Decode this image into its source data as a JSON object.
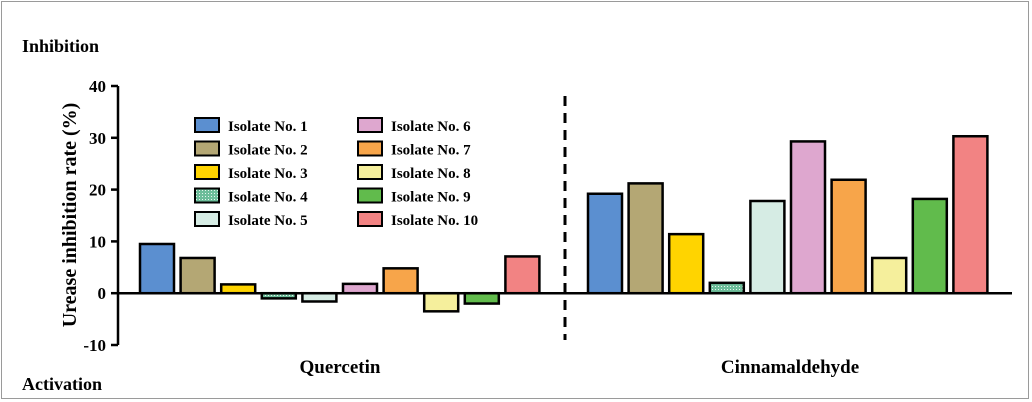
{
  "chart_data": {
    "type": "bar",
    "annotations": {
      "top": "Inhibition",
      "bottom": "Activation"
    },
    "ylabel": "Urease inhibition rate (%)",
    "ylim": [
      -10,
      40
    ],
    "yticks": [
      -10,
      0,
      10,
      20,
      30,
      40
    ],
    "groups": [
      "Quercetin",
      "Cinnamaldehyde"
    ],
    "series": [
      {
        "name": "Isolate No. 1",
        "color": "#5b8fd0",
        "pattern": "solid",
        "values": [
          9.5,
          19.2
        ]
      },
      {
        "name": "Isolate No. 2",
        "color": "#b4a774",
        "pattern": "solid",
        "values": [
          6.8,
          21.2
        ]
      },
      {
        "name": "Isolate No. 3",
        "color": "#ffd400",
        "pattern": "solid",
        "values": [
          1.7,
          11.4
        ]
      },
      {
        "name": "Isolate No. 4",
        "color": "#6dbd9a",
        "pattern": "dotted",
        "values": [
          -1.0,
          2.0
        ]
      },
      {
        "name": "Isolate No. 5",
        "color": "#d6ece4",
        "pattern": "solid",
        "values": [
          -1.6,
          17.8
        ]
      },
      {
        "name": "Isolate No. 6",
        "color": "#dea7cf",
        "pattern": "solid",
        "values": [
          1.8,
          29.3
        ]
      },
      {
        "name": "Isolate No. 7",
        "color": "#f7a54a",
        "pattern": "solid",
        "values": [
          4.8,
          21.9
        ]
      },
      {
        "name": "Isolate No. 8",
        "color": "#f5ef9c",
        "pattern": "solid",
        "values": [
          -3.5,
          6.8
        ]
      },
      {
        "name": "Isolate No. 9",
        "color": "#61bb4c",
        "pattern": "solid",
        "values": [
          -2.0,
          18.2
        ]
      },
      {
        "name": "Isolate No. 10",
        "color": "#f28383",
        "pattern": "solid",
        "values": [
          7.1,
          30.3
        ]
      }
    ],
    "separator": "dashed vertical line between groups",
    "legend_position": "upper-left, two columns",
    "grid": false
  }
}
